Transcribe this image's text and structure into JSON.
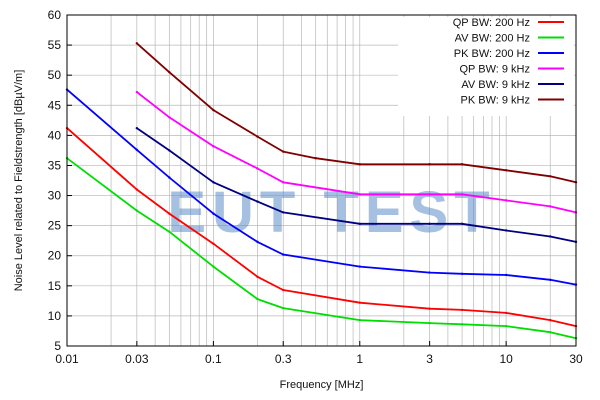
{
  "chart_data": {
    "type": "line",
    "xlabel": "Frequency [MHz]",
    "ylabel": "Noise Level related to Fieldstrength [dBµV/m]",
    "xscale": "log",
    "xlim": [
      0.01,
      30
    ],
    "ylim": [
      5,
      60
    ],
    "x_ticks": [
      0.01,
      0.03,
      0.1,
      0.3,
      1,
      3,
      10,
      30
    ],
    "x_tick_labels": [
      "0.01",
      "0.03",
      "0.1",
      "0.3",
      "1",
      "3",
      "10",
      "30"
    ],
    "y_ticks": [
      5,
      10,
      15,
      20,
      25,
      30,
      35,
      40,
      45,
      50,
      55,
      60
    ],
    "y_tick_labels": [
      "5",
      "10",
      "15",
      "20",
      "25",
      "30",
      "35",
      "40",
      "45",
      "50",
      "55",
      "60"
    ],
    "grid": true,
    "legend_position": "top-right",
    "watermark": "EUT TEST",
    "series": [
      {
        "name": "QP BW: 200 Hz",
        "color": "#ff0000",
        "points": [
          [
            0.01,
            41.2
          ],
          [
            0.03,
            31.0
          ],
          [
            0.05,
            27.0
          ],
          [
            0.1,
            22.0
          ],
          [
            0.2,
            16.5
          ],
          [
            0.3,
            14.3
          ],
          [
            1,
            12.2
          ],
          [
            3,
            11.2
          ],
          [
            5,
            11.0
          ],
          [
            10,
            10.5
          ],
          [
            20,
            9.3
          ],
          [
            30,
            8.3
          ]
        ]
      },
      {
        "name": "AV BW: 200 Hz",
        "color": "#00dd00",
        "points": [
          [
            0.01,
            36.2
          ],
          [
            0.03,
            27.5
          ],
          [
            0.05,
            24.0
          ],
          [
            0.1,
            18.2
          ],
          [
            0.2,
            12.8
          ],
          [
            0.3,
            11.3
          ],
          [
            1,
            9.3
          ],
          [
            3,
            8.8
          ],
          [
            5,
            8.6
          ],
          [
            10,
            8.3
          ],
          [
            20,
            7.3
          ],
          [
            30,
            6.3
          ]
        ]
      },
      {
        "name": "PK BW: 200 Hz",
        "color": "#0000ff",
        "points": [
          [
            0.01,
            47.6
          ],
          [
            0.03,
            37.6
          ],
          [
            0.05,
            33.0
          ],
          [
            0.1,
            27.0
          ],
          [
            0.2,
            22.3
          ],
          [
            0.3,
            20.2
          ],
          [
            1,
            18.2
          ],
          [
            3,
            17.2
          ],
          [
            5,
            17.0
          ],
          [
            10,
            16.8
          ],
          [
            20,
            16.0
          ],
          [
            30,
            15.2
          ]
        ]
      },
      {
        "name": "QP BW: 9 kHz",
        "color": "#ff00ff",
        "points": [
          [
            0.03,
            47.2
          ],
          [
            0.05,
            43.0
          ],
          [
            0.1,
            38.2
          ],
          [
            0.2,
            34.5
          ],
          [
            0.3,
            32.2
          ],
          [
            1,
            30.2
          ],
          [
            3,
            30.2
          ],
          [
            5,
            30.2
          ],
          [
            10,
            29.2
          ],
          [
            20,
            28.2
          ],
          [
            30,
            27.2
          ]
        ]
      },
      {
        "name": "AV BW: 9 kHz",
        "color": "#000080",
        "points": [
          [
            0.03,
            41.2
          ],
          [
            0.05,
            37.5
          ],
          [
            0.1,
            32.2
          ],
          [
            0.2,
            29.0
          ],
          [
            0.3,
            27.2
          ],
          [
            1,
            25.3
          ],
          [
            3,
            25.3
          ],
          [
            5,
            25.3
          ],
          [
            10,
            24.2
          ],
          [
            20,
            23.2
          ],
          [
            30,
            22.3
          ]
        ]
      },
      {
        "name": "PK BW: 9 kHz",
        "color": "#800000",
        "points": [
          [
            0.03,
            55.3
          ],
          [
            0.05,
            50.5
          ],
          [
            0.1,
            44.2
          ],
          [
            0.2,
            39.8
          ],
          [
            0.3,
            37.3
          ],
          [
            0.5,
            36.2
          ],
          [
            1,
            35.2
          ],
          [
            3,
            35.2
          ],
          [
            5,
            35.2
          ],
          [
            10,
            34.2
          ],
          [
            20,
            33.2
          ],
          [
            30,
            32.2
          ]
        ]
      }
    ]
  }
}
